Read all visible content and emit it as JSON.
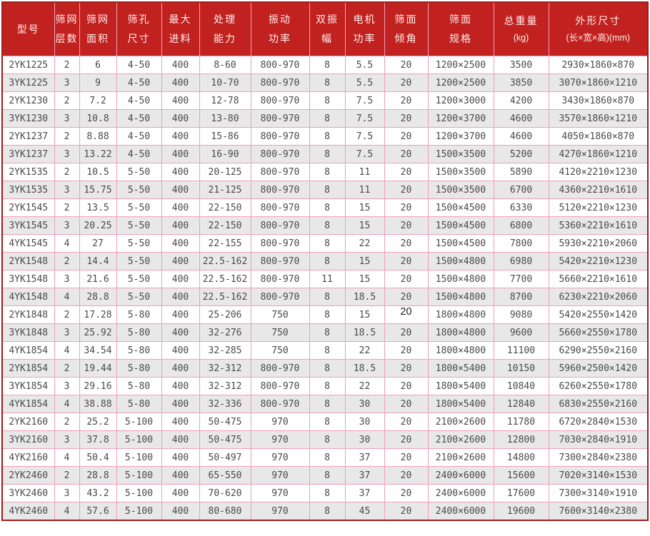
{
  "table": {
    "columns": [
      {
        "id": "model",
        "line1": "型号",
        "line2": ""
      },
      {
        "id": "layers",
        "line1": "筛网",
        "line2": "层数"
      },
      {
        "id": "screen-area",
        "line1": "筛网",
        "line2": "面积"
      },
      {
        "id": "mesh-size",
        "line1": "筛孔",
        "line2": "尺寸"
      },
      {
        "id": "max-feed",
        "line1": "最大",
        "line2": "进料"
      },
      {
        "id": "capacity",
        "line1": "处理",
        "line2": "能力"
      },
      {
        "id": "vib-power",
        "line1": "振动",
        "line2": "功率"
      },
      {
        "id": "amplitude",
        "line1": "双振",
        "line2": "幅"
      },
      {
        "id": "motor-power",
        "line1": "电机",
        "line2": "功率"
      },
      {
        "id": "deck-angle",
        "line1": "筛面",
        "line2": "倾角"
      },
      {
        "id": "deck-spec",
        "line1": "筛面",
        "line2": "规格"
      },
      {
        "id": "weight",
        "line1": "总重量",
        "line2": "(kg)"
      },
      {
        "id": "dimensions",
        "line1": "外形尺寸",
        "line2": "(长×宽×高)(mm)"
      }
    ],
    "rows": [
      [
        "2YK1225",
        "2",
        "6",
        "4-50",
        "400",
        "8-60",
        "800-970",
        "8",
        "5.5",
        "20",
        "1200×2500",
        "3500",
        "2930×1860×870"
      ],
      [
        "3YK1225",
        "3",
        "9",
        "4-50",
        "400",
        "10-70",
        "800-970",
        "8",
        "5.5",
        "20",
        "1200×2500",
        "3850",
        "3070×1860×1210"
      ],
      [
        "2YK1230",
        "2",
        "7.2",
        "4-50",
        "400",
        "12-78",
        "800-970",
        "8",
        "7.5",
        "20",
        "1200×3000",
        "4200",
        "3430×1860×870"
      ],
      [
        "3YK1230",
        "3",
        "10.8",
        "4-50",
        "400",
        "13-80",
        "800-970",
        "8",
        "7.5",
        "20",
        "1200×3700",
        "4600",
        "3570×1860×1210"
      ],
      [
        "2YK1237",
        "2",
        "8.88",
        "4-50",
        "400",
        "15-86",
        "800-970",
        "8",
        "7.5",
        "20",
        "1200×3700",
        "4600",
        "4050×1860×870"
      ],
      [
        "3YK1237",
        "3",
        "13.22",
        "4-50",
        "400",
        "16-90",
        "800-970",
        "8",
        "7.5",
        "20",
        "1500×3500",
        "5200",
        "4270×1860×1210"
      ],
      [
        "2YK1535",
        "2",
        "10.5",
        "5-50",
        "400",
        "20-125",
        "800-970",
        "8",
        "11",
        "20",
        "1500×3500",
        "5890",
        "4120×2210×1230"
      ],
      [
        "3YK1535",
        "3",
        "15.75",
        "5-50",
        "400",
        "21-125",
        "800-970",
        "8",
        "11",
        "20",
        "1500×3500",
        "6700",
        "4360×2210×1610"
      ],
      [
        "2YK1545",
        "2",
        "13.5",
        "5-50",
        "400",
        "22-150",
        "800-970",
        "8",
        "15",
        "20",
        "1500×4500",
        "6330",
        "5120×2210×1230"
      ],
      [
        "3YK1545",
        "3",
        "20.25",
        "5-50",
        "400",
        "22-150",
        "800-970",
        "8",
        "15",
        "20",
        "1500×4500",
        "6800",
        "5360×2210×1610"
      ],
      [
        "4YK1545",
        "4",
        "27",
        "5-50",
        "400",
        "22-155",
        "800-970",
        "8",
        "22",
        "20",
        "1500×4500",
        "7800",
        "5930×2210×2060"
      ],
      [
        "2YK1548",
        "2",
        "14.4",
        "5-50",
        "400",
        "22.5-162",
        "800-970",
        "8",
        "15",
        "20",
        "1500×4800",
        "6980",
        "5420×2210×1230"
      ],
      [
        "3YK1548",
        "3",
        "21.6",
        "5-50",
        "400",
        "22.5-162",
        "800-970",
        "11",
        "15",
        "20",
        "1500×4800",
        "7700",
        "5660×2210×1610"
      ],
      [
        "4YK1548",
        "4",
        "28.8",
        "5-50",
        "400",
        "22.5-162",
        "800-970",
        "8",
        "18.5",
        "20",
        "1500×4800",
        "8700",
        "6230×2210×2060"
      ],
      [
        "2YK1848",
        "2",
        "17.28",
        "5-80",
        "400",
        "25-206",
        "750",
        "8",
        "15",
        "20",
        "1800×4800",
        "9080",
        "5420×2550×1420"
      ],
      [
        "3YK1848",
        "3",
        "25.92",
        "5-80",
        "400",
        "32-276",
        "750",
        "8",
        "18.5",
        "20",
        "1800×4800",
        "9600",
        "5660×2550×1780"
      ],
      [
        "4YK1854",
        "4",
        "34.54",
        "5-80",
        "400",
        "32-285",
        "750",
        "8",
        "22",
        "20",
        "1800×4800",
        "11100",
        "6290×2550×2160"
      ],
      [
        "2YK1854",
        "2",
        "19.44",
        "5-80",
        "400",
        "32-312",
        "800-970",
        "8",
        "18.5",
        "20",
        "1800×5400",
        "10150",
        "5960×2500×1420"
      ],
      [
        "3YK1854",
        "3",
        "29.16",
        "5-80",
        "400",
        "32-312",
        "800-970",
        "8",
        "22",
        "20",
        "1800×5400",
        "10840",
        "6260×2550×1780"
      ],
      [
        "4YK1854",
        "4",
        "38.88",
        "5-80",
        "400",
        "32-336",
        "800-970",
        "8",
        "30",
        "20",
        "1800×5400",
        "12840",
        "6830×2550×2160"
      ],
      [
        "2YK2160",
        "2",
        "25.2",
        "5-100",
        "400",
        "50-475",
        "970",
        "8",
        "30",
        "20",
        "2100×2600",
        "11780",
        "6720×2840×1530"
      ],
      [
        "3YK2160",
        "3",
        "37.8",
        "5-100",
        "400",
        "50-475",
        "970",
        "8",
        "30",
        "20",
        "2100×2600",
        "12800",
        "7030×2840×1910"
      ],
      [
        "4YK2160",
        "4",
        "50.4",
        "5-100",
        "400",
        "50-497",
        "970",
        "8",
        "37",
        "20",
        "2100×2600",
        "14800",
        "7300×2840×2380"
      ],
      [
        "2YK2460",
        "2",
        "28.8",
        "5-100",
        "400",
        "65-550",
        "970",
        "8",
        "37",
        "20",
        "2400×6000",
        "15600",
        "7020×3140×1530"
      ],
      [
        "3YK2460",
        "3",
        "43.2",
        "5-100",
        "400",
        "70-620",
        "970",
        "8",
        "37",
        "20",
        "2400×6000",
        "17600",
        "7300×3140×1910"
      ],
      [
        "4YK2460",
        "4",
        "57.6",
        "5-100",
        "400",
        "80-680",
        "970",
        "8",
        "45",
        "20",
        "2400×6000",
        "19600",
        "7600×3140×2380"
      ]
    ],
    "alt_font_cell": {
      "model": "2YK1848",
      "column_id": "deck-angle"
    }
  },
  "colors": {
    "header_bg": "#c2221f",
    "header_text": "#ffecec",
    "grid_border": "#ef9fbd",
    "outer_border": "#9e1b1b",
    "row_even_bg": "#e8e8e8",
    "row_odd_bg": "#ffffff",
    "cell_text": "#4a4a4a"
  }
}
